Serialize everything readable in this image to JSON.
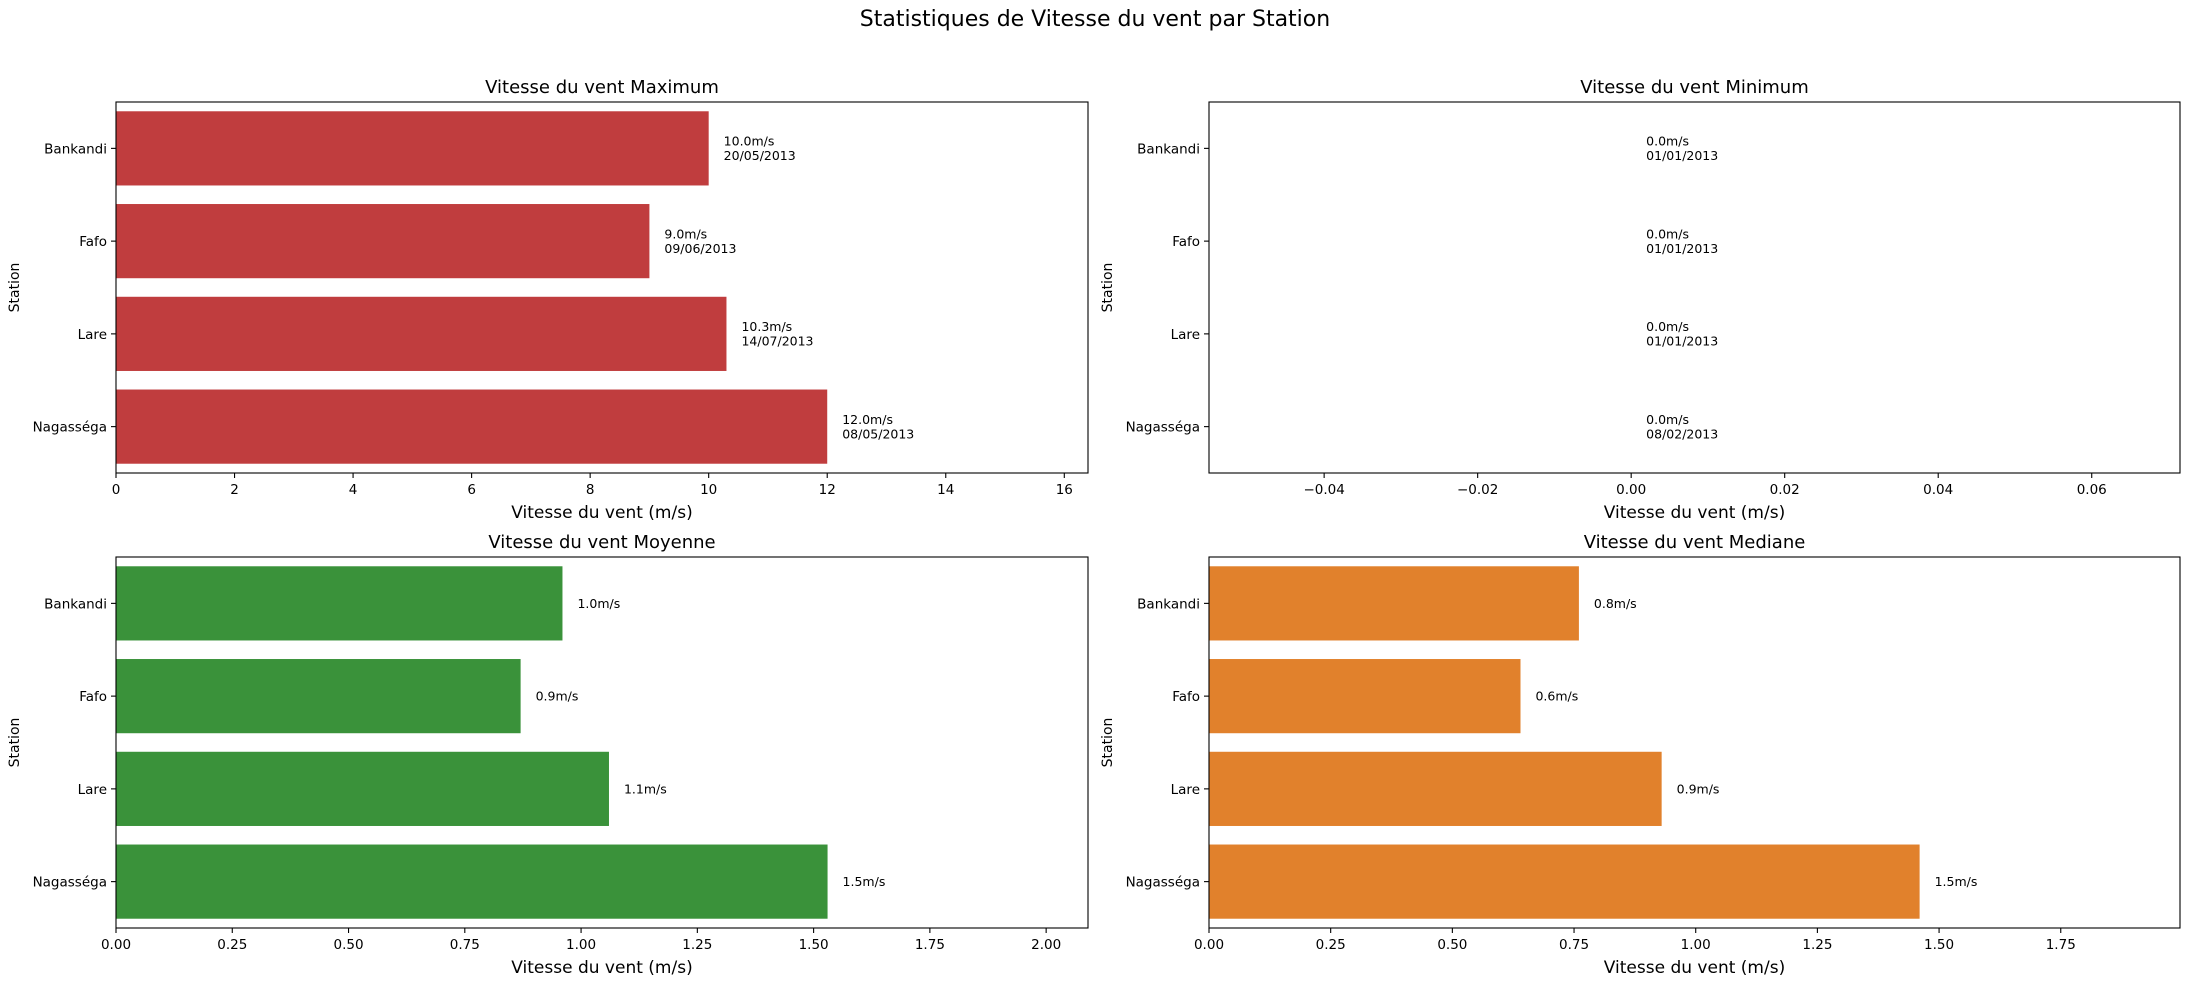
{
  "suptitle": "Statistiques de Vitesse du vent par Station",
  "chart_data": [
    {
      "type": "bar",
      "orientation": "horizontal",
      "title": "Vitesse du vent Maximum",
      "xlabel": "Vitesse du vent (m/s)",
      "ylabel": "Station",
      "categories": [
        "Bankandi",
        "Fafo",
        "Lare",
        "Nagasséga"
      ],
      "values": [
        10.0,
        9.0,
        10.3,
        12.0
      ],
      "labels": [
        "10.0m/s\n20/05/2013",
        "9.0m/s\n09/06/2013",
        "10.3m/s\n14/07/2013",
        "12.0m/s\n08/05/2013"
      ],
      "xlim": [
        0,
        16.4
      ],
      "xticks": [
        0,
        2,
        4,
        6,
        8,
        10,
        12,
        14,
        16
      ],
      "xtick_labels": [
        "0",
        "2",
        "4",
        "6",
        "8",
        "10",
        "12",
        "14",
        "16"
      ],
      "color": "#c03d3e",
      "grid": false,
      "legend": "none"
    },
    {
      "type": "bar",
      "orientation": "horizontal",
      "title": "Vitesse du vent Minimum",
      "xlabel": "Vitesse du vent (m/s)",
      "ylabel": "Station",
      "categories": [
        "Bankandi",
        "Fafo",
        "Lare",
        "Nagasséga"
      ],
      "values": [
        0.0,
        0.0,
        0.0,
        0.0
      ],
      "labels": [
        "0.0m/s\n01/01/2013",
        "0.0m/s\n01/01/2013",
        "0.0m/s\n01/01/2013",
        "0.0m/s\n08/02/2013"
      ],
      "xlim": [
        -0.055,
        0.0715
      ],
      "xticks": [
        -0.04,
        -0.02,
        0.0,
        0.02,
        0.04,
        0.06
      ],
      "xtick_labels": [
        "−0.04",
        "−0.02",
        "0.00",
        "0.02",
        "0.04",
        "0.06"
      ],
      "color": "#1f77b4",
      "grid": false,
      "legend": "none"
    },
    {
      "type": "bar",
      "orientation": "horizontal",
      "title": "Vitesse du vent Moyenne",
      "xlabel": "Vitesse du vent (m/s)",
      "ylabel": "Station",
      "categories": [
        "Bankandi",
        "Fafo",
        "Lare",
        "Nagasséga"
      ],
      "values": [
        0.96,
        0.87,
        1.06,
        1.53
      ],
      "labels": [
        "1.0m/s",
        "0.9m/s",
        "1.1m/s",
        "1.5m/s"
      ],
      "xlim": [
        0,
        2.09
      ],
      "xticks": [
        0,
        0.25,
        0.5,
        0.75,
        1.0,
        1.25,
        1.5,
        1.75,
        2.0
      ],
      "xtick_labels": [
        "0.00",
        "0.25",
        "0.50",
        "0.75",
        "1.00",
        "1.25",
        "1.50",
        "1.75",
        "2.00"
      ],
      "color": "#3a923a",
      "grid": false,
      "legend": "none"
    },
    {
      "type": "bar",
      "orientation": "horizontal",
      "title": "Vitesse du vent Mediane",
      "xlabel": "Vitesse du vent (m/s)",
      "ylabel": "Station",
      "categories": [
        "Bankandi",
        "Fafo",
        "Lare",
        "Nagasséga"
      ],
      "values": [
        0.76,
        0.64,
        0.93,
        1.46
      ],
      "labels": [
        "0.8m/s",
        "0.6m/s",
        "0.9m/s",
        "1.5m/s"
      ],
      "xlim": [
        0,
        1.995
      ],
      "xticks": [
        0,
        0.25,
        0.5,
        0.75,
        1.0,
        1.25,
        1.5,
        1.75
      ],
      "xtick_labels": [
        "0.00",
        "0.25",
        "0.50",
        "0.75",
        "1.00",
        "1.25",
        "1.50",
        "1.75"
      ],
      "color": "#e1812c",
      "grid": false,
      "legend": "none"
    }
  ]
}
